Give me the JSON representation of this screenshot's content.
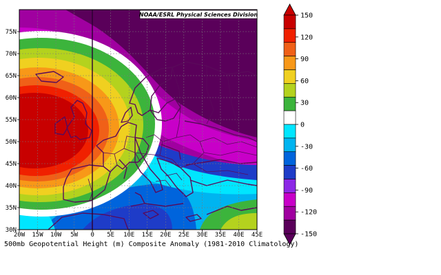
{
  "credit": "NOAA/ESRL Physical Sciences Division",
  "caption": "500mb Geopotential Height (m) Composite Anomaly (1981-2010 Climatology)",
  "map": {
    "lon_range": [
      -20,
      45
    ],
    "lat_range": [
      30,
      80
    ],
    "grid": true,
    "x_ticks": [
      "20W",
      "15W",
      "10W",
      "5W",
      "0",
      "5E",
      "10E",
      "15E",
      "20E",
      "25E",
      "30E",
      "35E",
      "40E",
      "45E"
    ],
    "y_ticks": [
      "30N",
      "35N",
      "40N",
      "45N",
      "50N",
      "55N",
      "60N",
      "65N",
      "70N",
      "75N"
    ],
    "anomaly_centers": [
      {
        "name": "positive",
        "lon": -14,
        "lat": 53,
        "value": 150
      },
      {
        "name": "negative",
        "lon": 35,
        "lat": 79,
        "value": -150
      },
      {
        "name": "negative",
        "lon": 6,
        "lat": 35,
        "value": -60
      }
    ]
  },
  "colorbar": {
    "labels": [
      "150",
      "120",
      "90",
      "60",
      "30",
      "0",
      "-30",
      "-60",
      "-90",
      "-120",
      "-150"
    ],
    "colors": [
      "#c80000",
      "#f02000",
      "#f06018",
      "#f89818",
      "#f0d020",
      "#b4d21e",
      "#3cb43c",
      "#ffffff",
      "#00e6ff",
      "#00b4f0",
      "#0064dc",
      "#1e3cc8",
      "#8c28e6",
      "#c800c8",
      "#a000a0",
      "#5a005a"
    ]
  }
}
